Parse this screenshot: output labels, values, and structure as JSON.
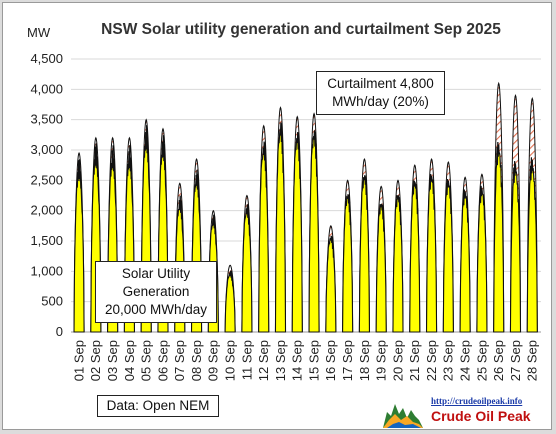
{
  "chart_data": {
    "type": "area",
    "title": "NSW Solar utility generation and curtailment Sep  2025",
    "ylabel": "MW",
    "ylim": [
      0,
      4500
    ],
    "yticks": [
      "0",
      "500",
      "1,000",
      "1,500",
      "2,000",
      "2,500",
      "3,000",
      "3,500",
      "4,000",
      "4,500"
    ],
    "categories": [
      "01 Sep",
      "02 Sep",
      "03 Sep",
      "04 Sep",
      "05 Sep",
      "06 Sep",
      "07 Sep",
      "08 Sep",
      "09 Sep",
      "10 Sep",
      "11 Sep",
      "12 Sep",
      "13 Sep",
      "14 Sep",
      "15 Sep",
      "16 Sep",
      "17 Sep",
      "18 Sep",
      "19 Sep",
      "20 Sep",
      "21 Sep",
      "22 Sep",
      "23 Sep",
      "24 Sep",
      "25 Sep",
      "26 Sep",
      "27 Sep",
      "28 Sep"
    ],
    "series": [
      {
        "name": "Solar Utility Generation",
        "color": "#ffff00",
        "values": [
          2900,
          3150,
          3100,
          3100,
          3450,
          3300,
          2300,
          2750,
          2000,
          1050,
          2200,
          3300,
          3650,
          3500,
          3550,
          1700,
          2450,
          2800,
          2300,
          2450,
          2700,
          2800,
          2700,
          2500,
          2550,
          3300,
          2950,
          3000
        ]
      },
      {
        "name": "Curtailment",
        "color": "#e07050",
        "values": [
          2950,
          3200,
          3200,
          3200,
          3500,
          3350,
          2450,
          2850,
          2000,
          1100,
          2250,
          3400,
          3700,
          3550,
          3600,
          1750,
          2500,
          2850,
          2400,
          2500,
          2750,
          2850,
          2800,
          2550,
          2600,
          4100,
          3900,
          3850
        ]
      }
    ],
    "gridlines": true
  },
  "annotations": {
    "solar_line1": "Solar Utility",
    "solar_line2": "Generation",
    "solar_line3": "20,000 MWh/day",
    "curtail_line1": "Curtailment 4,800",
    "curtail_line2": "MWh/day (20%)",
    "source": "Data: Open NEM"
  },
  "logo": {
    "url": "http://crudeoilpeak.info",
    "name": "Crude Oil Peak"
  }
}
